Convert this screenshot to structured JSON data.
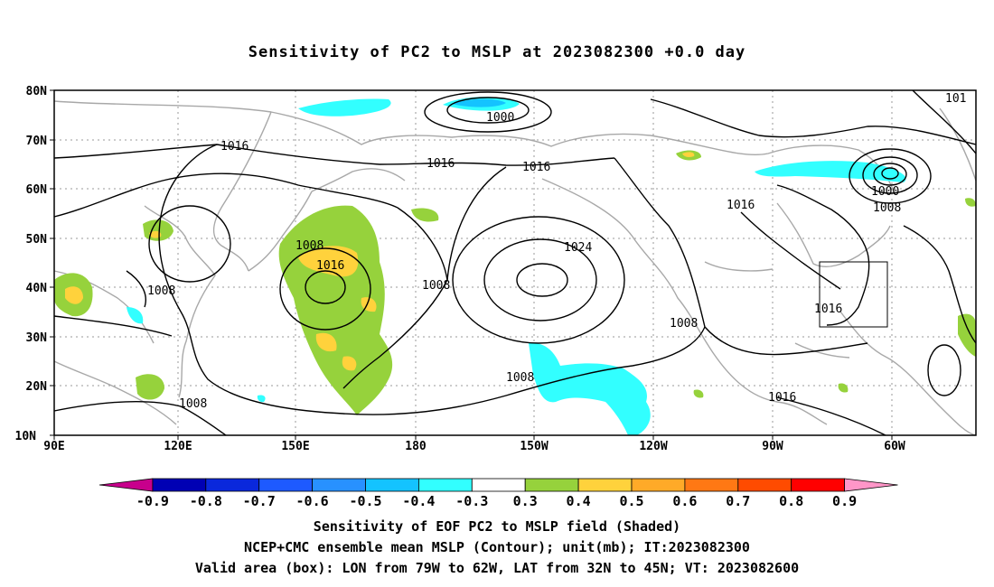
{
  "title": "Sensitivity of PC2 to MSLP at 2023082300 +0.0 day",
  "lat_labels": [
    "80N",
    "70N",
    "60N",
    "50N",
    "40N",
    "30N",
    "20N",
    "10N"
  ],
  "lon_labels": [
    "90E",
    "120E",
    "150E",
    "180",
    "150W",
    "120W",
    "90W",
    "60W"
  ],
  "contour_labels": [
    {
      "text": "1000"
    },
    {
      "text": "101"
    },
    {
      "text": "1016"
    },
    {
      "text": "1016"
    },
    {
      "text": "1016"
    },
    {
      "text": "1000"
    },
    {
      "text": "1008"
    },
    {
      "text": "1016"
    },
    {
      "text": "1008"
    },
    {
      "text": "1024"
    },
    {
      "text": "1016"
    },
    {
      "text": "1008"
    },
    {
      "text": "1008"
    },
    {
      "text": "1008"
    },
    {
      "text": "1016"
    },
    {
      "text": "1008"
    },
    {
      "text": "1016"
    },
    {
      "text": "1008"
    }
  ],
  "colorbar": {
    "colors": [
      "#c8008c",
      "#0000b4",
      "#0a28dc",
      "#1e5aff",
      "#2891ff",
      "#14c3ff",
      "#32ffff",
      "#ffffff",
      "#96d23c",
      "#ffd23c",
      "#ffaa28",
      "#ff7814",
      "#ff4b00",
      "#ff0000",
      "#ff96c8"
    ],
    "ticks": [
      "-0.9",
      "-0.8",
      "-0.7",
      "-0.6",
      "-0.5",
      "-0.4",
      "-0.3",
      "0.3",
      "0.4",
      "0.5",
      "0.6",
      "0.7",
      "0.8",
      "0.9"
    ]
  },
  "footer": {
    "line1": "Sensitivity of EOF PC2 to MSLP field (Shaded)",
    "line2": "NCEP+CMC ensemble mean MSLP (Contour); unit(mb); IT:2023082300",
    "line3": "Valid area (box): LON from 79W to 62W, LAT from 32N to 45N; VT: 2023082600"
  }
}
